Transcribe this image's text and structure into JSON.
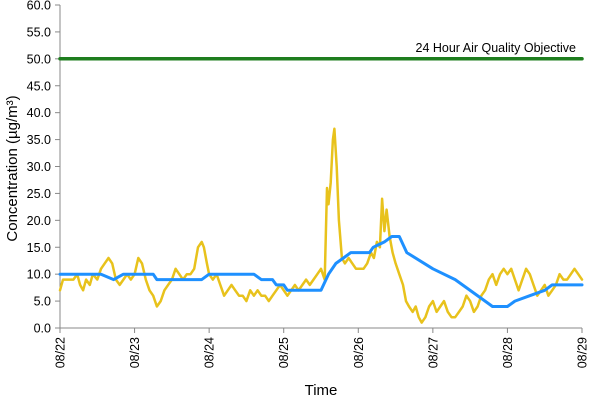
{
  "chart_data": {
    "type": "line",
    "title": "",
    "xlabel": "Time",
    "ylabel": "Concentration (µg/m³)",
    "ylim": [
      0,
      60
    ],
    "y_ticks": [
      "0.0",
      "5.0",
      "10.0",
      "15.0",
      "20.0",
      "25.0",
      "30.0",
      "35.0",
      "40.0",
      "45.0",
      "50.0",
      "55.0",
      "60.0"
    ],
    "x_ticks": [
      "08/22",
      "08/23",
      "08/24",
      "08/25",
      "08/26",
      "08/27",
      "08/28",
      "08/29"
    ],
    "grid": false,
    "legend": "none",
    "annotations": [
      {
        "text": "24 Hour Air Quality Objective",
        "y": 50
      }
    ],
    "series": [
      {
        "color": "#1E90FF",
        "style": "24-hour running mean",
        "points": [
          [
            0,
            10
          ],
          [
            0.55,
            10
          ],
          [
            0.72,
            9
          ],
          [
            0.85,
            10
          ],
          [
            1.25,
            10
          ],
          [
            1.3,
            9
          ],
          [
            1.9,
            9
          ],
          [
            2.0,
            10
          ],
          [
            2.6,
            10
          ],
          [
            2.7,
            9
          ],
          [
            2.85,
            9
          ],
          [
            2.9,
            8
          ],
          [
            3.0,
            8
          ],
          [
            3.05,
            7
          ],
          [
            3.5,
            7
          ],
          [
            3.6,
            10
          ],
          [
            3.7,
            12
          ],
          [
            3.8,
            13
          ],
          [
            3.9,
            14
          ],
          [
            4.15,
            14
          ],
          [
            4.2,
            15
          ],
          [
            4.35,
            16
          ],
          [
            4.45,
            17
          ],
          [
            4.55,
            17
          ],
          [
            4.65,
            14
          ],
          [
            5.0,
            11
          ],
          [
            5.3,
            9
          ],
          [
            5.7,
            5
          ],
          [
            5.8,
            4
          ],
          [
            6.0,
            4
          ],
          [
            6.1,
            5
          ],
          [
            6.3,
            6
          ],
          [
            6.5,
            7
          ],
          [
            6.6,
            8
          ],
          [
            7.0,
            8
          ]
        ]
      },
      {
        "color": "#E8C21C",
        "style": "hourly",
        "points": [
          [
            0,
            7
          ],
          [
            0.04,
            9
          ],
          [
            0.08,
            9
          ],
          [
            0.13,
            9
          ],
          [
            0.18,
            9
          ],
          [
            0.23,
            10
          ],
          [
            0.27,
            8
          ],
          [
            0.31,
            7
          ],
          [
            0.35,
            9
          ],
          [
            0.4,
            8
          ],
          [
            0.44,
            10
          ],
          [
            0.5,
            9
          ],
          [
            0.55,
            11
          ],
          [
            0.6,
            12
          ],
          [
            0.65,
            13
          ],
          [
            0.7,
            12
          ],
          [
            0.75,
            9
          ],
          [
            0.8,
            8
          ],
          [
            0.85,
            9
          ],
          [
            0.9,
            10
          ],
          [
            0.95,
            9
          ],
          [
            1.0,
            10
          ],
          [
            1.05,
            13
          ],
          [
            1.1,
            12
          ],
          [
            1.15,
            9
          ],
          [
            1.2,
            7
          ],
          [
            1.25,
            6
          ],
          [
            1.3,
            4
          ],
          [
            1.35,
            5
          ],
          [
            1.4,
            7
          ],
          [
            1.45,
            8
          ],
          [
            1.5,
            9
          ],
          [
            1.55,
            11
          ],
          [
            1.6,
            10
          ],
          [
            1.65,
            9
          ],
          [
            1.7,
            10
          ],
          [
            1.75,
            10
          ],
          [
            1.8,
            11
          ],
          [
            1.85,
            15
          ],
          [
            1.9,
            16
          ],
          [
            1.93,
            15
          ],
          [
            1.97,
            12
          ],
          [
            2.0,
            10
          ],
          [
            2.05,
            9
          ],
          [
            2.1,
            10
          ],
          [
            2.15,
            8
          ],
          [
            2.2,
            6
          ],
          [
            2.25,
            7
          ],
          [
            2.3,
            8
          ],
          [
            2.35,
            7
          ],
          [
            2.4,
            6
          ],
          [
            2.45,
            6
          ],
          [
            2.5,
            5
          ],
          [
            2.55,
            7
          ],
          [
            2.6,
            6
          ],
          [
            2.65,
            7
          ],
          [
            2.7,
            6
          ],
          [
            2.75,
            6
          ],
          [
            2.8,
            5
          ],
          [
            2.85,
            6
          ],
          [
            2.9,
            7
          ],
          [
            2.95,
            8
          ],
          [
            3.0,
            7
          ],
          [
            3.05,
            6
          ],
          [
            3.1,
            7
          ],
          [
            3.15,
            8
          ],
          [
            3.2,
            7
          ],
          [
            3.25,
            8
          ],
          [
            3.3,
            9
          ],
          [
            3.35,
            8
          ],
          [
            3.4,
            9
          ],
          [
            3.45,
            10
          ],
          [
            3.5,
            11
          ],
          [
            3.55,
            9
          ],
          [
            3.58,
            26
          ],
          [
            3.6,
            23
          ],
          [
            3.63,
            27
          ],
          [
            3.66,
            35
          ],
          [
            3.68,
            37
          ],
          [
            3.71,
            30
          ],
          [
            3.74,
            20
          ],
          [
            3.78,
            13
          ],
          [
            3.82,
            12
          ],
          [
            3.87,
            13
          ],
          [
            3.92,
            12
          ],
          [
            3.97,
            11
          ],
          [
            4.02,
            11
          ],
          [
            4.07,
            11
          ],
          [
            4.12,
            12
          ],
          [
            4.17,
            14
          ],
          [
            4.21,
            13
          ],
          [
            4.25,
            16
          ],
          [
            4.29,
            15
          ],
          [
            4.32,
            24
          ],
          [
            4.35,
            18
          ],
          [
            4.38,
            22
          ],
          [
            4.42,
            17
          ],
          [
            4.46,
            14
          ],
          [
            4.5,
            12
          ],
          [
            4.55,
            10
          ],
          [
            4.6,
            8
          ],
          [
            4.64,
            5
          ],
          [
            4.68,
            4
          ],
          [
            4.73,
            3
          ],
          [
            4.77,
            4
          ],
          [
            4.81,
            2
          ],
          [
            4.85,
            1
          ],
          [
            4.9,
            2
          ],
          [
            4.95,
            4
          ],
          [
            5.0,
            5
          ],
          [
            5.05,
            3
          ],
          [
            5.1,
            4
          ],
          [
            5.15,
            5
          ],
          [
            5.2,
            3
          ],
          [
            5.25,
            2
          ],
          [
            5.3,
            2
          ],
          [
            5.35,
            3
          ],
          [
            5.4,
            4
          ],
          [
            5.45,
            6
          ],
          [
            5.5,
            5
          ],
          [
            5.55,
            3
          ],
          [
            5.6,
            4
          ],
          [
            5.65,
            6
          ],
          [
            5.7,
            7
          ],
          [
            5.75,
            9
          ],
          [
            5.8,
            10
          ],
          [
            5.85,
            8
          ],
          [
            5.9,
            10
          ],
          [
            5.95,
            11
          ],
          [
            6.0,
            10
          ],
          [
            6.05,
            11
          ],
          [
            6.1,
            9
          ],
          [
            6.15,
            7
          ],
          [
            6.2,
            9
          ],
          [
            6.25,
            11
          ],
          [
            6.3,
            10
          ],
          [
            6.35,
            8
          ],
          [
            6.4,
            6
          ],
          [
            6.45,
            7
          ],
          [
            6.5,
            8
          ],
          [
            6.55,
            6
          ],
          [
            6.6,
            7
          ],
          [
            6.65,
            8
          ],
          [
            6.7,
            10
          ],
          [
            6.75,
            9
          ],
          [
            6.8,
            9
          ],
          [
            6.85,
            10
          ],
          [
            6.9,
            11
          ],
          [
            6.95,
            10
          ],
          [
            7.0,
            9
          ]
        ]
      },
      {
        "color": "#1E7D1E",
        "style": "objective line",
        "points": [
          [
            0,
            50
          ],
          [
            7,
            50
          ]
        ]
      }
    ]
  }
}
